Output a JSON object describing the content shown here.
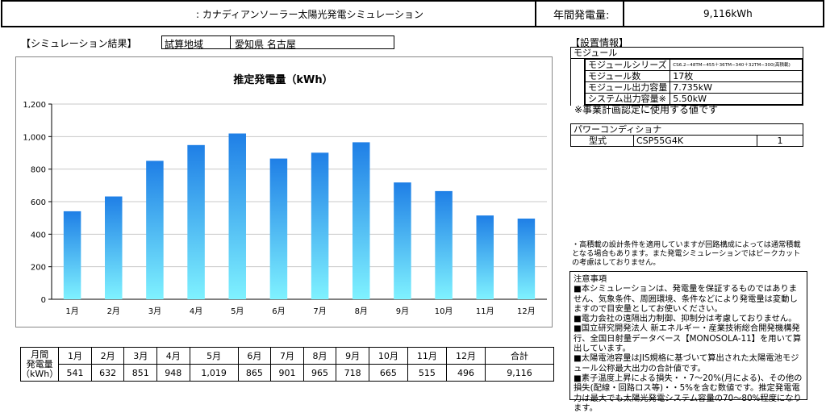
{
  "header": {
    "title": ": カナディアンソーラー太陽光発電シミュレーション",
    "annual_label": "年間発電量:",
    "annual_value": "9,116kWh"
  },
  "simulation": {
    "section_label": "【シミュレーション結果】",
    "region_label": "試算地域",
    "region_value": "愛知県 名古屋"
  },
  "chart_data": {
    "type": "bar",
    "title": "推定発電量（kWh）",
    "categories": [
      "1月",
      "2月",
      "3月",
      "4月",
      "5月",
      "6月",
      "7月",
      "8月",
      "9月",
      "10月",
      "11月",
      "12月"
    ],
    "values": [
      541,
      632,
      851,
      948,
      1019,
      865,
      901,
      965,
      718,
      665,
      515,
      496
    ],
    "yticks": [
      "0",
      "200",
      "400",
      "600",
      "800",
      "1,000",
      "1,200"
    ],
    "ylim": [
      0,
      1200
    ],
    "colors": {
      "bar_top": "#1f7fe6",
      "bar_bottom": "#7ff2ff",
      "grid": "#c8c8c8"
    }
  },
  "monthly_table": {
    "row_header": [
      "月間",
      "発電量",
      "（kWh）"
    ],
    "months": [
      "1月",
      "2月",
      "3月",
      "4月",
      "5月",
      "6月",
      "7月",
      "8月",
      "9月",
      "10月",
      "11月",
      "12月"
    ],
    "values": [
      "541",
      "632",
      "851",
      "948",
      "1,019",
      "865",
      "901",
      "965",
      "718",
      "665",
      "515",
      "496"
    ],
    "total_label": "合計",
    "total_value": "9,116"
  },
  "install_info": {
    "section_label": "【設置情報】",
    "module_header": "モジュール",
    "rows": [
      {
        "label": "モジュールシリーズ",
        "value": "CS6.2−48TM−455＋36TM−340＋32TM−300(高積載)"
      },
      {
        "label": "モジュール数",
        "value": "17枚"
      },
      {
        "label": "モジュール出力容量",
        "value": "7.735kW"
      },
      {
        "label": "システム出力容量※",
        "value": "5.50kW"
      }
    ],
    "footnote": "※事業計画認定に使用する値です",
    "pcs_header": "パワーコンディショナ",
    "pcs_label": "型式",
    "pcs_model": "CSP55G4K",
    "pcs_count": "1"
  },
  "remarks": "・高積載の設計条件を適用していますが回路構成によっては通常積載となる場合もあります。また発電シミュレーションではピークカットの考慮はしておりません。",
  "notes": {
    "title": "注意事項",
    "items": [
      "■本シミュレーションは、発電量を保証するものではありません、気象条件、周囲環境、条件などにより発電量は変動しますので目安量としてお使いください。",
      "■電力会社の遠隔出力制御、抑制分は考慮しておりません。",
      "■国立研究開発法人 新エネルギー・産業技術総合開発機構発行、全国日射量データベース【MONOSOLA-11】を用いて算出しています。",
      "■太陽電池容量はJIS規格に基づいて算出された太陽電池モジュール公称最大出力の合計値です。",
      "■素子温度上昇による損失・・7～20%(月による)、その他の損失(配線・回路ロス等)・・5%を含む数値です。推定発電電力は最大でも太陽光発電システム容量の70～80%程度になります。"
    ]
  }
}
